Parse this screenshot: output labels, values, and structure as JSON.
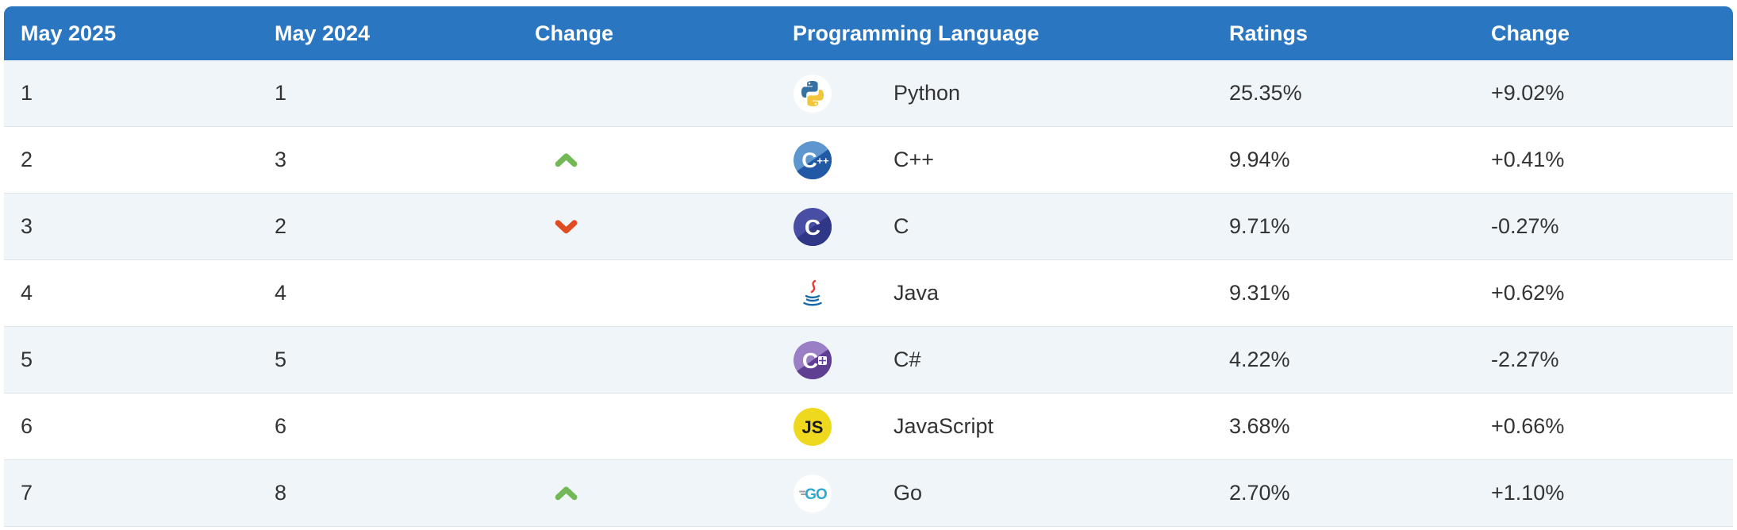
{
  "table": {
    "headers": {
      "rank_now": "May 2025",
      "rank_prev": "May 2024",
      "position_change": "Change",
      "language": "Programming Language",
      "ratings": "Ratings",
      "ratings_change": "Change"
    },
    "rows": [
      {
        "rank_now": "1",
        "rank_prev": "1",
        "position_change": "none",
        "icon": "python-icon",
        "language": "Python",
        "ratings": "25.35%",
        "change": "+9.02%"
      },
      {
        "rank_now": "2",
        "rank_prev": "3",
        "position_change": "up",
        "icon": "cpp-icon",
        "language": "C++",
        "ratings": "9.94%",
        "change": "+0.41%"
      },
      {
        "rank_now": "3",
        "rank_prev": "2",
        "position_change": "down",
        "icon": "c-icon",
        "language": "C",
        "ratings": "9.71%",
        "change": "-0.27%"
      },
      {
        "rank_now": "4",
        "rank_prev": "4",
        "position_change": "none",
        "icon": "java-icon",
        "language": "Java",
        "ratings": "9.31%",
        "change": "+0.62%"
      },
      {
        "rank_now": "5",
        "rank_prev": "5",
        "position_change": "none",
        "icon": "csharp-icon",
        "language": "C#",
        "ratings": "4.22%",
        "change": "-2.27%"
      },
      {
        "rank_now": "6",
        "rank_prev": "6",
        "position_change": "none",
        "icon": "javascript-icon",
        "language": "JavaScript",
        "ratings": "3.68%",
        "change": "+0.66%"
      },
      {
        "rank_now": "7",
        "rank_prev": "8",
        "position_change": "up",
        "icon": "go-icon",
        "language": "Go",
        "ratings": "2.70%",
        "change": "+1.10%"
      }
    ]
  },
  "colors": {
    "header_bg": "#2b76c1",
    "row_alt_bg": "#f0f5f9",
    "row_bg": "#ffffff",
    "text": "#333333",
    "up_arrow": "#72b857",
    "down_arrow": "#e04b22"
  }
}
